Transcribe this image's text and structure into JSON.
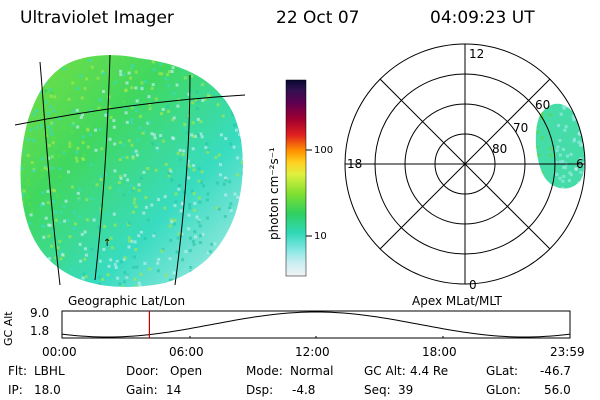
{
  "header": {
    "instrument": "Ultraviolet Imager",
    "date": "22 Oct 07",
    "time": "04:09:23 UT"
  },
  "colorbar": {
    "unit_label": "photon cm⁻²s⁻¹",
    "ticks": [
      "100",
      "10"
    ]
  },
  "polar_plot": {
    "labels": [
      "12",
      "18",
      "6",
      "0",
      "60",
      "70",
      "80"
    ],
    "caption": "Apex MLat/MLT"
  },
  "geo_caption": "Geographic Lat/Lon",
  "altitude": {
    "axis_label": "GC Alt",
    "ticks": [
      "9.0",
      "1.8"
    ],
    "time_ticks": [
      "00:00",
      "06:00",
      "12:00",
      "18:00",
      "23:59"
    ],
    "current_fraction": 0.172
  },
  "info": {
    "filter_label": "Flt:",
    "filter_value": "LBHL",
    "ip_label": "IP:",
    "ip_value": "18.0",
    "door_label": "Door:",
    "door_value": "Open",
    "gain_label": "Gain:",
    "gain_value": "14",
    "mode_label": "Mode:",
    "mode_value": "Normal",
    "dsp_label": "Dsp:",
    "dsp_value": "-4.8",
    "gcalt_label": "GC Alt:",
    "gcalt_value": "4.4 Re",
    "seq_label": "Seq:",
    "seq_value": "39",
    "glat_label": "GLat:",
    "glat_value": "-46.7",
    "glon_label": "GLon:",
    "glon_value": "56.0"
  },
  "colors": {
    "aurora_green": "#44dd44",
    "aurora_cyan": "#44e0c8",
    "aurora_pale": "#c8f0f0",
    "marker_red": "#cc0000"
  }
}
